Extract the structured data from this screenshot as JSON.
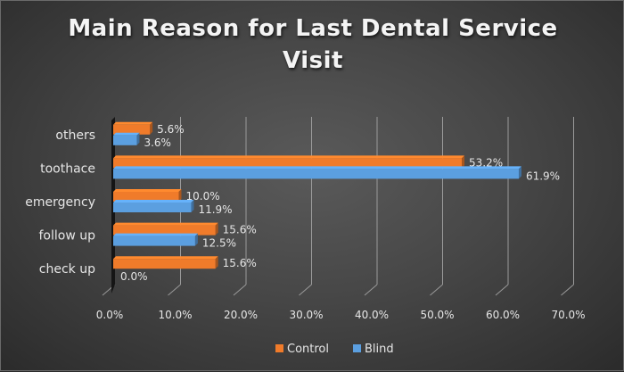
{
  "chart_data": {
    "type": "bar",
    "orientation": "horizontal",
    "style": "3d-clustered",
    "title_lines": [
      "Main Reason for Last Dental Service",
      "Visit"
    ],
    "title": "Main Reason for Last Dental Service Visit",
    "xlabel": "",
    "ylabel": "",
    "categories": [
      "check up",
      "follow up",
      "emergency",
      "toothace",
      "others"
    ],
    "series": [
      {
        "name": "Control",
        "color": "#f07b2a",
        "values": [
          15.6,
          15.6,
          10.0,
          53.2,
          5.6
        ],
        "labels": [
          "15.6%",
          "15.6%",
          "10.0%",
          "53.2%",
          "5.6%"
        ]
      },
      {
        "name": "Blind",
        "color": "#5b9fe0",
        "values": [
          0.0,
          12.5,
          11.9,
          61.9,
          3.6
        ],
        "labels": [
          "0.0%",
          "12.5%",
          "11.9%",
          "61.9%",
          "3.6%"
        ]
      }
    ],
    "xlim": [
      0,
      70
    ],
    "xticks": [
      0,
      10,
      20,
      30,
      40,
      50,
      60,
      70
    ],
    "xtick_labels": [
      "0.0%",
      "10.0%",
      "20.0%",
      "30.0%",
      "40.0%",
      "50.0%",
      "60.0%",
      "70.0%"
    ],
    "grid": true,
    "legend": {
      "position": "bottom",
      "entries": [
        "Control",
        "Blind"
      ]
    },
    "colors": {
      "background": "#444444",
      "text": "#e6e6e6",
      "grid": "#9a9a9a"
    }
  }
}
